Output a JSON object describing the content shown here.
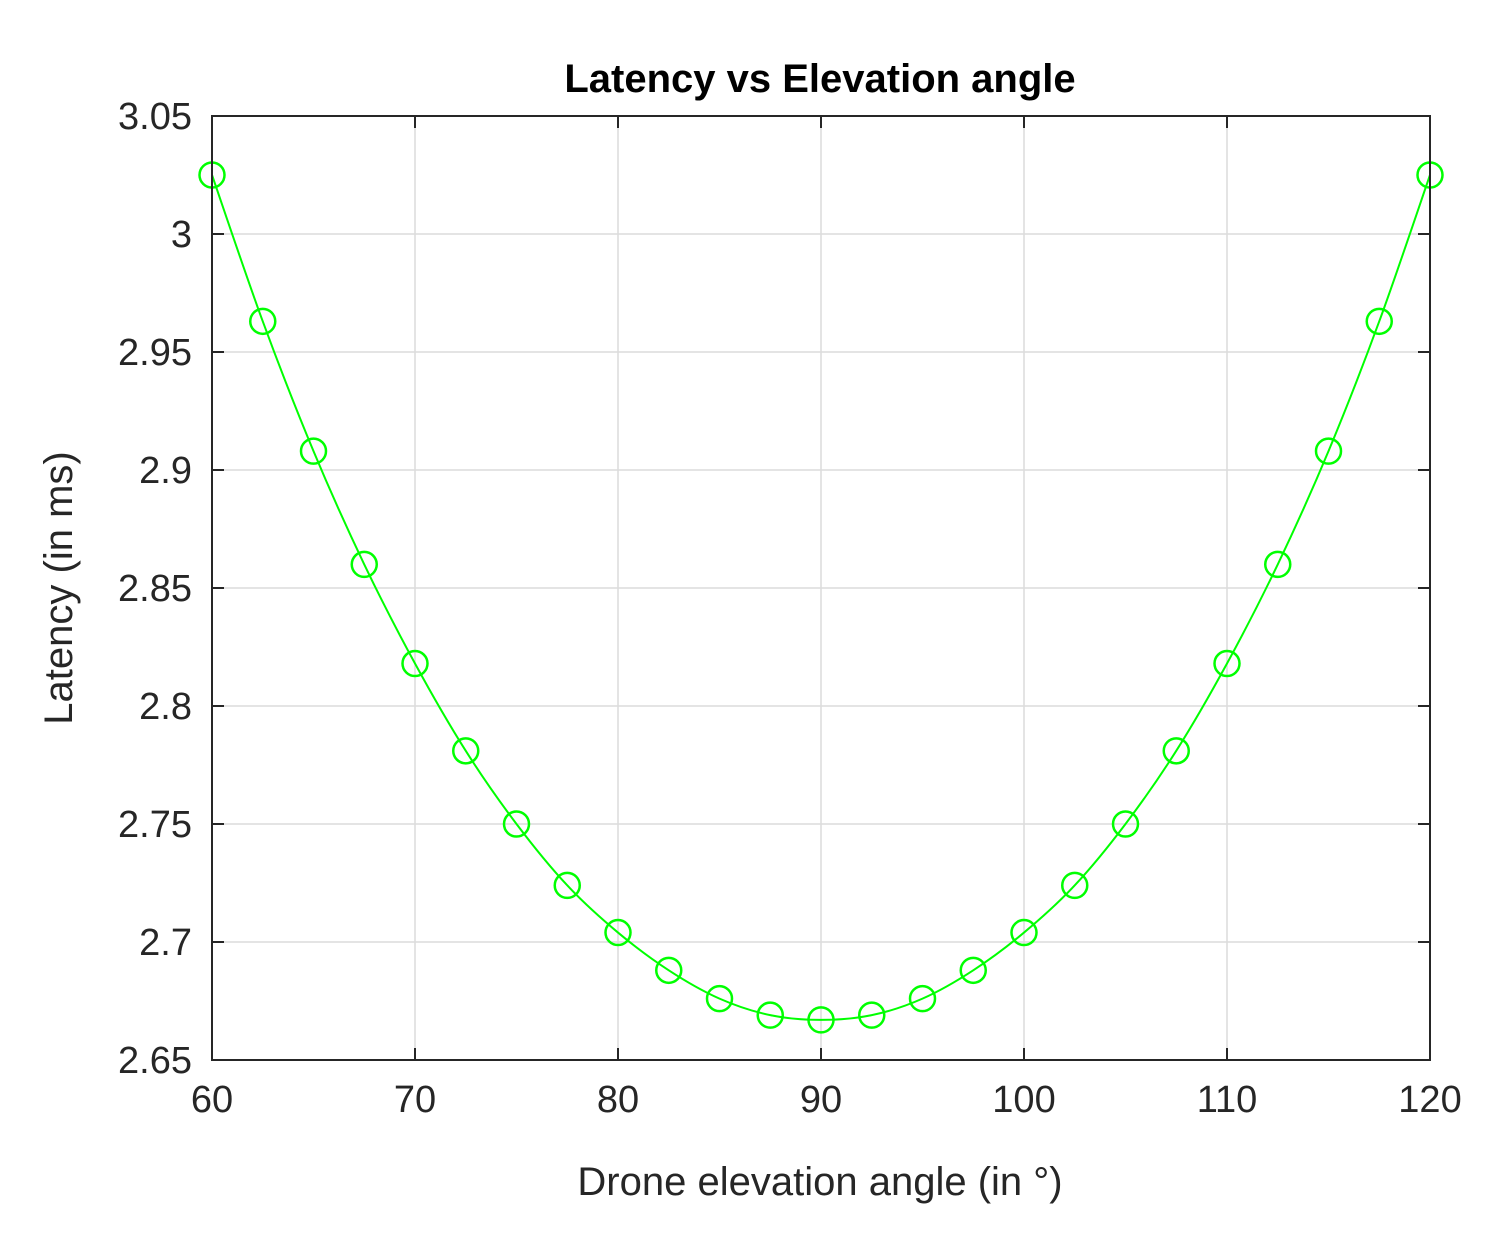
{
  "chart_data": {
    "type": "line",
    "title": "Latency vs Elevation angle",
    "xlabel": "Drone elevation angle (in °)",
    "ylabel": "Latency (in ms)",
    "xlim": [
      60,
      120
    ],
    "ylim": [
      2.65,
      3.05
    ],
    "xticks": [
      60,
      70,
      80,
      90,
      100,
      110,
      120
    ],
    "xtick_labels": [
      "60",
      "70",
      "80",
      "90",
      "100",
      "110",
      "120"
    ],
    "yticks": [
      2.65,
      2.7,
      2.75,
      2.8,
      2.85,
      2.9,
      2.95,
      3.0,
      3.05
    ],
    "ytick_labels": [
      "2.65",
      "2.7",
      "2.75",
      "2.8",
      "2.85",
      "2.9",
      "2.95",
      "3",
      "3.05"
    ],
    "grid": true,
    "series": [
      {
        "name": "Latency",
        "color": "#00ff00",
        "marker": "circle",
        "x": [
          60,
          62.5,
          65,
          67.5,
          70,
          72.5,
          75,
          77.5,
          80,
          82.5,
          85,
          87.5,
          90,
          92.5,
          95,
          97.5,
          100,
          102.5,
          105,
          107.5,
          110,
          112.5,
          115,
          117.5,
          120
        ],
        "y": [
          3.025,
          2.963,
          2.908,
          2.86,
          2.818,
          2.781,
          2.75,
          2.724,
          2.704,
          2.688,
          2.676,
          2.669,
          2.667,
          2.669,
          2.676,
          2.688,
          2.704,
          2.724,
          2.75,
          2.781,
          2.818,
          2.86,
          2.908,
          2.963,
          3.025
        ]
      }
    ]
  }
}
